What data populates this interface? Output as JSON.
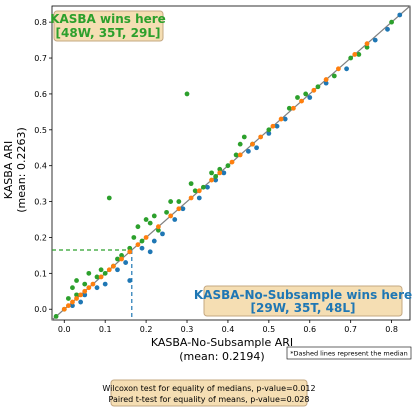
{
  "chart_data": {
    "type": "scatter",
    "xlabel": "KASBA-No-Subsample ARI",
    "xlabel_mean": "(mean: 0.2194)",
    "ylabel": "KASBA ARI",
    "ylabel_mean": "(mean: 0.2263)",
    "xlim": [
      -0.03,
      0.845
    ],
    "ylim": [
      -0.03,
      0.845
    ],
    "xticks": [
      0.0,
      0.1,
      0.2,
      0.3,
      0.4,
      0.5,
      0.6,
      0.7,
      0.8
    ],
    "yticks": [
      0.0,
      0.1,
      0.2,
      0.3,
      0.4,
      0.5,
      0.6,
      0.7,
      0.8
    ],
    "median_x": 0.165,
    "median_y": 0.165,
    "colors": {
      "win": "#2ca02c",
      "loss": "#1f77b4",
      "tie": "#ff7f0e",
      "diag": "#808080",
      "box_bg": "#f5deb3",
      "box_edge": "#c4a882"
    },
    "annotations": {
      "wins_title": "KASBA wins here",
      "wins_counts": "[48W, 35T, 29L]",
      "losses_title": "KASBA-No-Subsample wins here",
      "losses_counts": "[29W, 35T, 48L]",
      "median_note": "*Dashed lines represent the median",
      "test_line1": "Wilcoxon test for equality of medians, p-value=0.012",
      "test_line2": "Paired t-test for equality of means, p-value=0.028"
    },
    "series": [
      {
        "category": "win",
        "points": [
          [
            -0.02,
            -0.02
          ],
          [
            0.0,
            0.0
          ],
          [
            0.01,
            0.03
          ],
          [
            0.02,
            0.06
          ],
          [
            0.03,
            0.08
          ],
          [
            0.03,
            0.04
          ],
          [
            0.05,
            0.07
          ],
          [
            0.06,
            0.1
          ],
          [
            0.08,
            0.09
          ],
          [
            0.09,
            0.11
          ],
          [
            0.1,
            0.1
          ],
          [
            0.11,
            0.31
          ],
          [
            0.12,
            0.12
          ],
          [
            0.13,
            0.14
          ],
          [
            0.14,
            0.15
          ],
          [
            0.16,
            0.17
          ],
          [
            0.17,
            0.2
          ],
          [
            0.18,
            0.23
          ],
          [
            0.19,
            0.19
          ],
          [
            0.2,
            0.25
          ],
          [
            0.21,
            0.24
          ],
          [
            0.22,
            0.26
          ],
          [
            0.23,
            0.22
          ],
          [
            0.25,
            0.27
          ],
          [
            0.26,
            0.3
          ],
          [
            0.28,
            0.3
          ],
          [
            0.3,
            0.6
          ],
          [
            0.31,
            0.35
          ],
          [
            0.32,
            0.33
          ],
          [
            0.34,
            0.34
          ],
          [
            0.36,
            0.38
          ],
          [
            0.37,
            0.37
          ],
          [
            0.38,
            0.39
          ],
          [
            0.4,
            0.4
          ],
          [
            0.42,
            0.43
          ],
          [
            0.43,
            0.46
          ],
          [
            0.44,
            0.48
          ],
          [
            0.46,
            0.46
          ],
          [
            0.5,
            0.5
          ],
          [
            0.55,
            0.56
          ],
          [
            0.57,
            0.59
          ],
          [
            0.59,
            0.6
          ],
          [
            0.62,
            0.62
          ],
          [
            0.66,
            0.65
          ],
          [
            0.7,
            0.7
          ],
          [
            0.72,
            0.71
          ],
          [
            0.74,
            0.73
          ],
          [
            0.8,
            0.8
          ]
        ]
      },
      {
        "category": "loss",
        "points": [
          [
            0.02,
            0.01
          ],
          [
            0.04,
            0.02
          ],
          [
            0.05,
            0.04
          ],
          [
            0.08,
            0.06
          ],
          [
            0.1,
            0.07
          ],
          [
            0.13,
            0.11
          ],
          [
            0.15,
            0.13
          ],
          [
            0.16,
            0.08
          ],
          [
            0.19,
            0.17
          ],
          [
            0.21,
            0.16
          ],
          [
            0.22,
            0.19
          ],
          [
            0.24,
            0.21
          ],
          [
            0.27,
            0.25
          ],
          [
            0.29,
            0.28
          ],
          [
            0.33,
            0.31
          ],
          [
            0.35,
            0.34
          ],
          [
            0.37,
            0.36
          ],
          [
            0.39,
            0.38
          ],
          [
            0.45,
            0.44
          ],
          [
            0.47,
            0.45
          ],
          [
            0.5,
            0.49
          ],
          [
            0.52,
            0.51
          ],
          [
            0.54,
            0.53
          ],
          [
            0.6,
            0.59
          ],
          [
            0.64,
            0.63
          ],
          [
            0.69,
            0.67
          ],
          [
            0.76,
            0.75
          ],
          [
            0.79,
            0.78
          ],
          [
            0.82,
            0.82
          ]
        ]
      },
      {
        "category": "tie",
        "points": [
          [
            0.0,
            0.0
          ],
          [
            0.01,
            0.01
          ],
          [
            0.02,
            0.02
          ],
          [
            0.03,
            0.03
          ],
          [
            0.04,
            0.04
          ],
          [
            0.05,
            0.05
          ],
          [
            0.06,
            0.06
          ],
          [
            0.07,
            0.07
          ],
          [
            0.09,
            0.09
          ],
          [
            0.11,
            0.11
          ],
          [
            0.12,
            0.12
          ],
          [
            0.14,
            0.14
          ],
          [
            0.16,
            0.16
          ],
          [
            0.18,
            0.18
          ],
          [
            0.2,
            0.2
          ],
          [
            0.23,
            0.23
          ],
          [
            0.26,
            0.26
          ],
          [
            0.28,
            0.28
          ],
          [
            0.31,
            0.31
          ],
          [
            0.33,
            0.33
          ],
          [
            0.36,
            0.36
          ],
          [
            0.38,
            0.38
          ],
          [
            0.41,
            0.41
          ],
          [
            0.43,
            0.43
          ],
          [
            0.46,
            0.46
          ],
          [
            0.48,
            0.48
          ],
          [
            0.51,
            0.51
          ],
          [
            0.53,
            0.53
          ],
          [
            0.56,
            0.56
          ],
          [
            0.58,
            0.58
          ],
          [
            0.61,
            0.61
          ],
          [
            0.64,
            0.64
          ],
          [
            0.67,
            0.67
          ],
          [
            0.71,
            0.71
          ],
          [
            0.74,
            0.74
          ]
        ]
      }
    ]
  }
}
